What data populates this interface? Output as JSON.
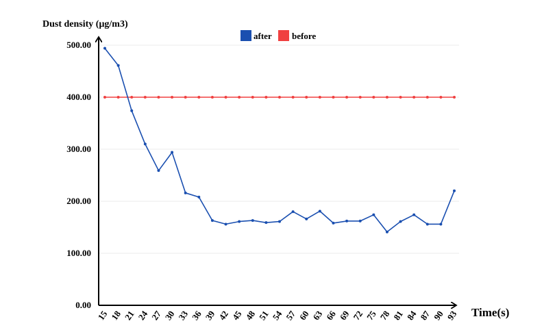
{
  "chart_data": {
    "type": "line",
    "title": "",
    "ylabel": "Dust density (μg/m3)",
    "xlabel": "Time(s)",
    "x": [
      15,
      18,
      21,
      24,
      27,
      30,
      33,
      36,
      39,
      42,
      45,
      48,
      51,
      54,
      57,
      60,
      63,
      66,
      69,
      72,
      75,
      78,
      81,
      84,
      87,
      90,
      93
    ],
    "ylim": [
      0,
      500
    ],
    "yticks": [
      "0.00",
      "100.00",
      "200.00",
      "300.00",
      "400.00",
      "500.00"
    ],
    "grid": true,
    "legend_position": "top-center",
    "series": [
      {
        "name": "after",
        "color": "#1a4fb0",
        "values": [
          494,
          461,
          374,
          310,
          259,
          294,
          216,
          208,
          163,
          156,
          161,
          163,
          159,
          161,
          180,
          166,
          181,
          158,
          162,
          162,
          174,
          141,
          161,
          174,
          156,
          156,
          220
        ]
      },
      {
        "name": "before",
        "color": "#f04040",
        "values": [
          400,
          400,
          400,
          400,
          400,
          400,
          400,
          400,
          400,
          400,
          400,
          400,
          400,
          400,
          400,
          400,
          400,
          400,
          400,
          400,
          400,
          400,
          400,
          400,
          400,
          400,
          400
        ]
      }
    ]
  }
}
